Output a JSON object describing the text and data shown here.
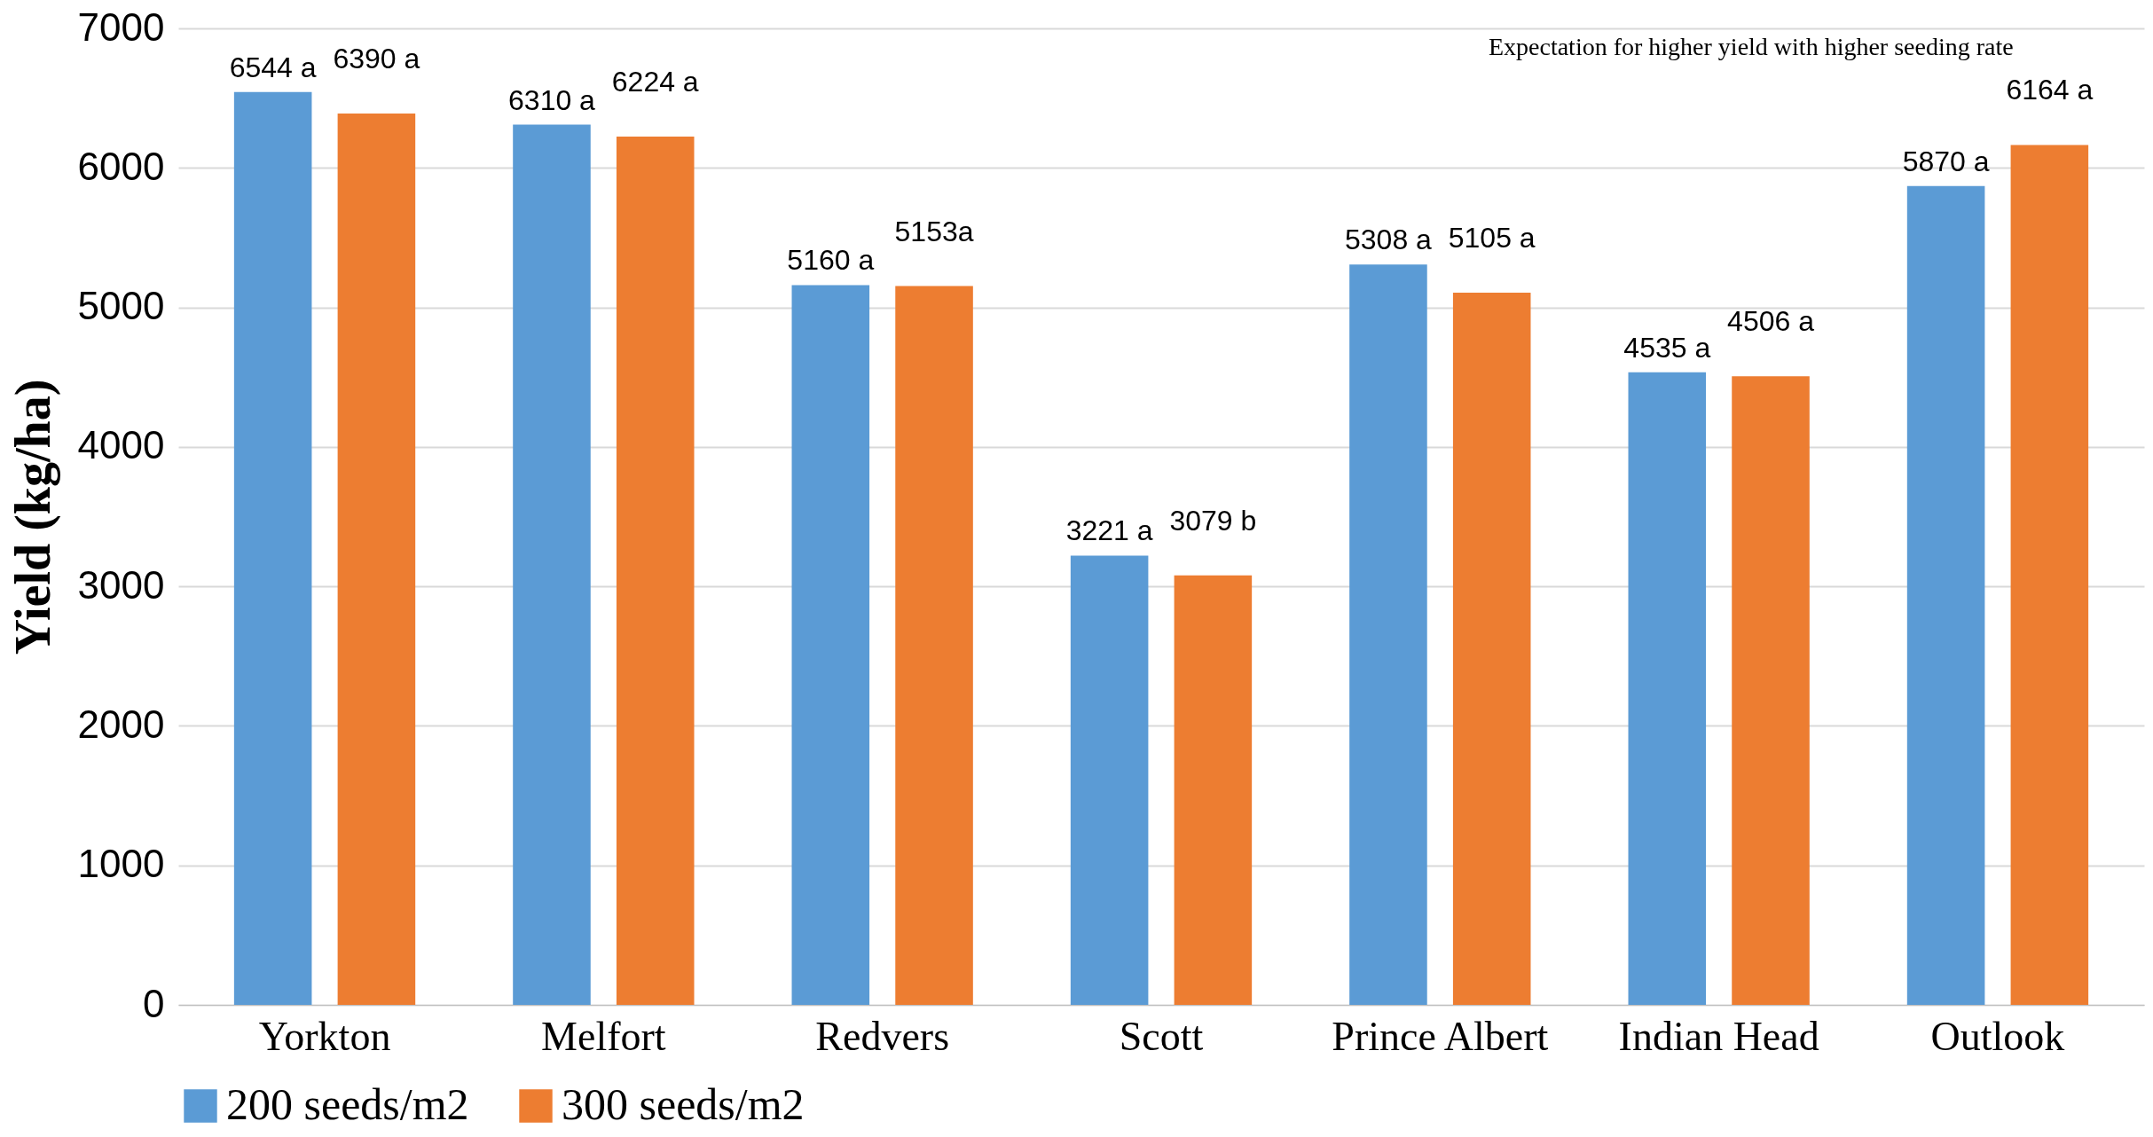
{
  "chart_data": {
    "type": "bar",
    "ylabel": "Yield (kg/ha)",
    "categories": [
      "Yorkton",
      "Melfort",
      "Redvers",
      "Scott",
      "Prince Albert",
      "Indian Head",
      "Outlook"
    ],
    "series": [
      {
        "name": "200 seeds/m2",
        "color": "#5b9bd5",
        "values": [
          6544,
          6310,
          5160,
          3221,
          5308,
          4535,
          5870
        ],
        "value_labels": [
          "6544 a",
          "6310 a",
          "5160 a",
          "3221 a",
          "5308 a",
          "4535 a",
          "5870 a"
        ]
      },
      {
        "name": "300 seeds/m2",
        "color": "#ed7d31",
        "values": [
          6390,
          6224,
          5153,
          3079,
          5105,
          4506,
          6164
        ],
        "value_labels": [
          "6390 a",
          "6224 a",
          "5153a",
          "3079 b",
          "5105 a",
          "4506 a",
          "6164 a"
        ]
      }
    ],
    "ylim": [
      0,
      7000
    ],
    "yticks": [
      0,
      1000,
      2000,
      3000,
      4000,
      5000,
      6000,
      7000
    ],
    "grid": "y",
    "legend": "bottom",
    "annotations": [
      "Expectation for higher yield with higher seeding rate"
    ]
  }
}
